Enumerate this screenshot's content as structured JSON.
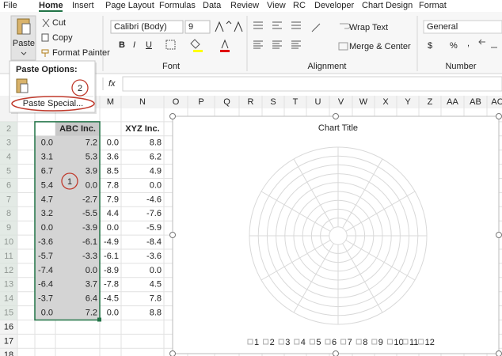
{
  "tabs": [
    "File",
    "Home",
    "Insert",
    "Page Layout",
    "Formulas",
    "Data",
    "Review",
    "View",
    "RC",
    "Developer",
    "Chart Design",
    "Format"
  ],
  "clipboard": {
    "paste": "Paste",
    "cut": "Cut",
    "copy": "Copy",
    "format_painter": "Format Painter"
  },
  "font": {
    "name": "Calibri (Body)",
    "size": "9",
    "styles": [
      "B",
      "I",
      "U"
    ],
    "group": "Font"
  },
  "alignment": {
    "wrap": "Wrap Text",
    "merge": "Merge & Center",
    "group": "Alignment"
  },
  "number": {
    "format": "General",
    "currency": "$",
    "percent": "%",
    "comma": ",",
    "group": "Number"
  },
  "paste_menu": {
    "title": "Paste Options:",
    "special": "Paste Special..."
  },
  "callouts": [
    "1",
    "2"
  ],
  "formula_bar": {
    "fx": "fx"
  },
  "columns": [
    "M",
    "N",
    "O",
    "P",
    "Q",
    "R",
    "S",
    "T",
    "U",
    "V",
    "W",
    "X",
    "Y",
    "Z",
    "AA",
    "AB",
    "AC"
  ],
  "rows": [
    "2",
    "3",
    "4",
    "5",
    "6",
    "7",
    "8",
    "9",
    "10",
    "11",
    "12",
    "13",
    "14",
    "15",
    "16",
    "17",
    "18"
  ],
  "cells": [
    [
      "",
      "ABC Inc.",
      "",
      "XYZ Inc."
    ],
    [
      "0.0",
      "7.2",
      "0.0",
      "8.8"
    ],
    [
      "3.1",
      "5.3",
      "3.6",
      "6.2"
    ],
    [
      "6.7",
      "3.9",
      "8.5",
      "4.9"
    ],
    [
      "5.4",
      "0.0",
      "7.8",
      "0.0"
    ],
    [
      "4.7",
      "-2.7",
      "7.9",
      "-4.6"
    ],
    [
      "3.2",
      "-5.5",
      "4.4",
      "-7.6"
    ],
    [
      "0.0",
      "-3.9",
      "0.0",
      "-5.9"
    ],
    [
      "-3.6",
      "-6.1",
      "-4.9",
      "-8.4"
    ],
    [
      "-5.7",
      "-3.3",
      "-6.1",
      "-3.6"
    ],
    [
      "-7.4",
      "0.0",
      "-8.9",
      "0.0"
    ],
    [
      "-6.4",
      "3.7",
      "-7.8",
      "4.5"
    ],
    [
      "-3.7",
      "6.4",
      "-4.5",
      "7.8"
    ],
    [
      "0.0",
      "7.2",
      "0.0",
      "8.8"
    ]
  ],
  "chart": {
    "title": "Chart Title",
    "legend": [
      "1",
      "2",
      "3",
      "4",
      "5",
      "6",
      "7",
      "8",
      "9",
      "10",
      "11",
      "12"
    ]
  }
}
